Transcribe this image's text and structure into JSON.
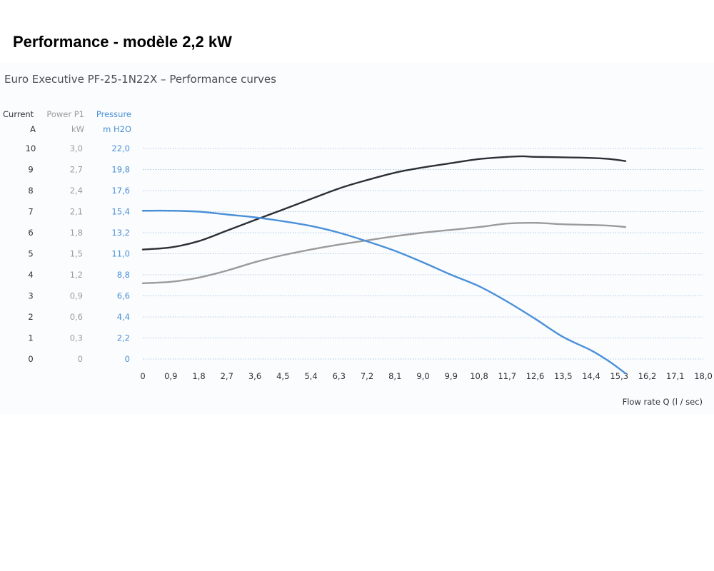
{
  "page": {
    "heading": "Performance - modèle 2,2 kW"
  },
  "colors": {
    "current": "#2c3035",
    "power": "#9b9b9b",
    "pressure": "#4a90d9",
    "grid": "#a9c8e6",
    "axis_dark": "#2e3236",
    "axis_gray": "#9b9b9b",
    "axis_blue": "#4a90d9"
  },
  "chart_data": {
    "type": "line",
    "title": "Euro Executive PF-25-1N22X – Performance curves",
    "xlabel": "Flow rate Q  (l / sec)",
    "xlim": [
      0,
      18.0
    ],
    "x_ticks": [
      "0",
      "0,9",
      "1,8",
      "2,7",
      "3,6",
      "4,5",
      "5,4",
      "6,3",
      "7,2",
      "8,1",
      "9,0",
      "9,9",
      "10,8",
      "11,7",
      "12,6",
      "13,5",
      "14,4",
      "15,3",
      "16,2",
      "17,1",
      "18,0"
    ],
    "grid": true,
    "y_axes": [
      {
        "key": "current",
        "header": [
          "Current",
          "A"
        ],
        "ylim": [
          0,
          10
        ],
        "ticks": [
          "0",
          "1",
          "2",
          "3",
          "4",
          "5",
          "6",
          "7",
          "8",
          "9",
          "10"
        ]
      },
      {
        "key": "power",
        "header": [
          "Power P1",
          "kW"
        ],
        "ylim": [
          0,
          3.0
        ],
        "ticks": [
          "0",
          "0,3",
          "0,6",
          "0,9",
          "1,2",
          "1,5",
          "1,8",
          "2,1",
          "2,4",
          "2,7",
          "3,0"
        ]
      },
      {
        "key": "pressure",
        "header": [
          "Pressure",
          "m H2O"
        ],
        "ylim": [
          0,
          22.0
        ],
        "ticks": [
          "0",
          "2,2",
          "4,4",
          "6,6",
          "8,8",
          "11,0",
          "13,2",
          "15,4",
          "17,6",
          "19,8",
          "22,0"
        ]
      }
    ],
    "series": [
      {
        "axis": "current",
        "x": [
          0,
          0.9,
          1.8,
          2.7,
          3.6,
          4.5,
          5.4,
          6.3,
          7.2,
          8.1,
          9.0,
          9.9,
          10.8,
          11.7,
          12.2,
          12.6,
          13.5,
          14.4,
          15.0,
          15.5
        ],
        "y": [
          5.2,
          5.3,
          5.6,
          6.1,
          6.6,
          7.1,
          7.6,
          8.1,
          8.5,
          8.85,
          9.1,
          9.3,
          9.5,
          9.6,
          9.63,
          9.6,
          9.58,
          9.55,
          9.5,
          9.4
        ]
      },
      {
        "axis": "power",
        "x": [
          0,
          0.9,
          1.8,
          2.7,
          3.6,
          4.5,
          5.4,
          6.3,
          7.2,
          8.1,
          9.0,
          9.9,
          10.8,
          11.7,
          12.6,
          13.5,
          14.4,
          15.0,
          15.5
        ],
        "y": [
          1.08,
          1.1,
          1.16,
          1.26,
          1.38,
          1.48,
          1.56,
          1.63,
          1.69,
          1.75,
          1.8,
          1.84,
          1.88,
          1.93,
          1.94,
          1.92,
          1.91,
          1.9,
          1.88
        ]
      },
      {
        "axis": "pressure",
        "x": [
          0,
          0.9,
          1.8,
          2.7,
          3.6,
          4.5,
          5.4,
          6.3,
          7.2,
          8.1,
          9.0,
          9.9,
          10.8,
          11.7,
          12.6,
          13.5,
          14.4,
          15.0,
          15.5
        ],
        "y": [
          15.5,
          15.5,
          15.4,
          15.1,
          14.8,
          14.4,
          13.9,
          13.2,
          12.3,
          11.3,
          10.1,
          8.8,
          7.6,
          6.0,
          4.2,
          2.3,
          0.9,
          -0.3,
          -1.5
        ]
      }
    ]
  }
}
